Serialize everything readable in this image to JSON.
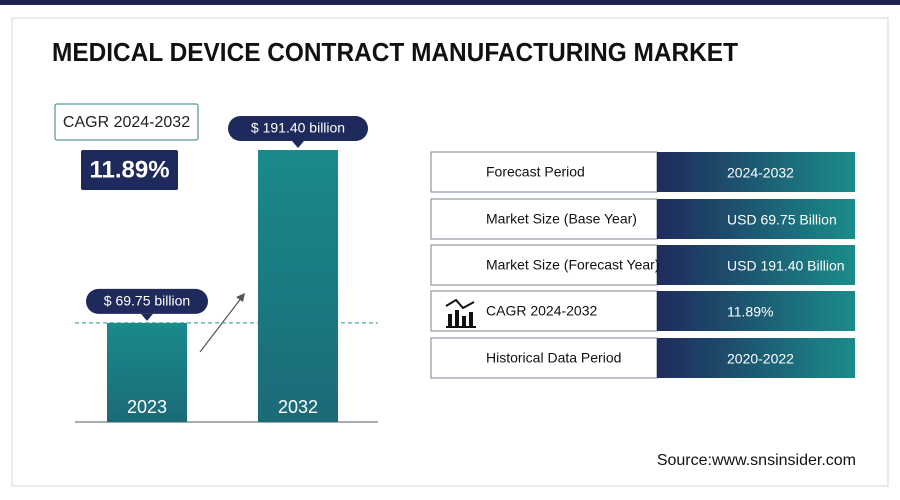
{
  "chart_data": {
    "type": "bar",
    "title": "MEDICAL DEVICE CONTRACT MANUFACTURING MARKET",
    "categories": [
      "2023",
      "2032"
    ],
    "values": [
      69.75,
      191.4
    ],
    "value_labels": [
      "$ 69.75 billion",
      "$ 191.40 billion"
    ],
    "color": "#1e7f84"
  },
  "cagr": {
    "label": "CAGR 2024-2032",
    "value": "11.89%"
  },
  "table": {
    "rows": [
      [
        "Forecast Period",
        "2024-2032"
      ],
      [
        "Market Size (Base Year)",
        "USD 69.75 Billion"
      ],
      [
        "Market Size (Forecast Year)",
        "USD 191.40 Billion"
      ],
      [
        "CAGR 2024-2032",
        "11.89%"
      ],
      [
        "Historical Data Period",
        "2020-2022"
      ]
    ]
  },
  "source": "Source:www.snsinsider.com"
}
